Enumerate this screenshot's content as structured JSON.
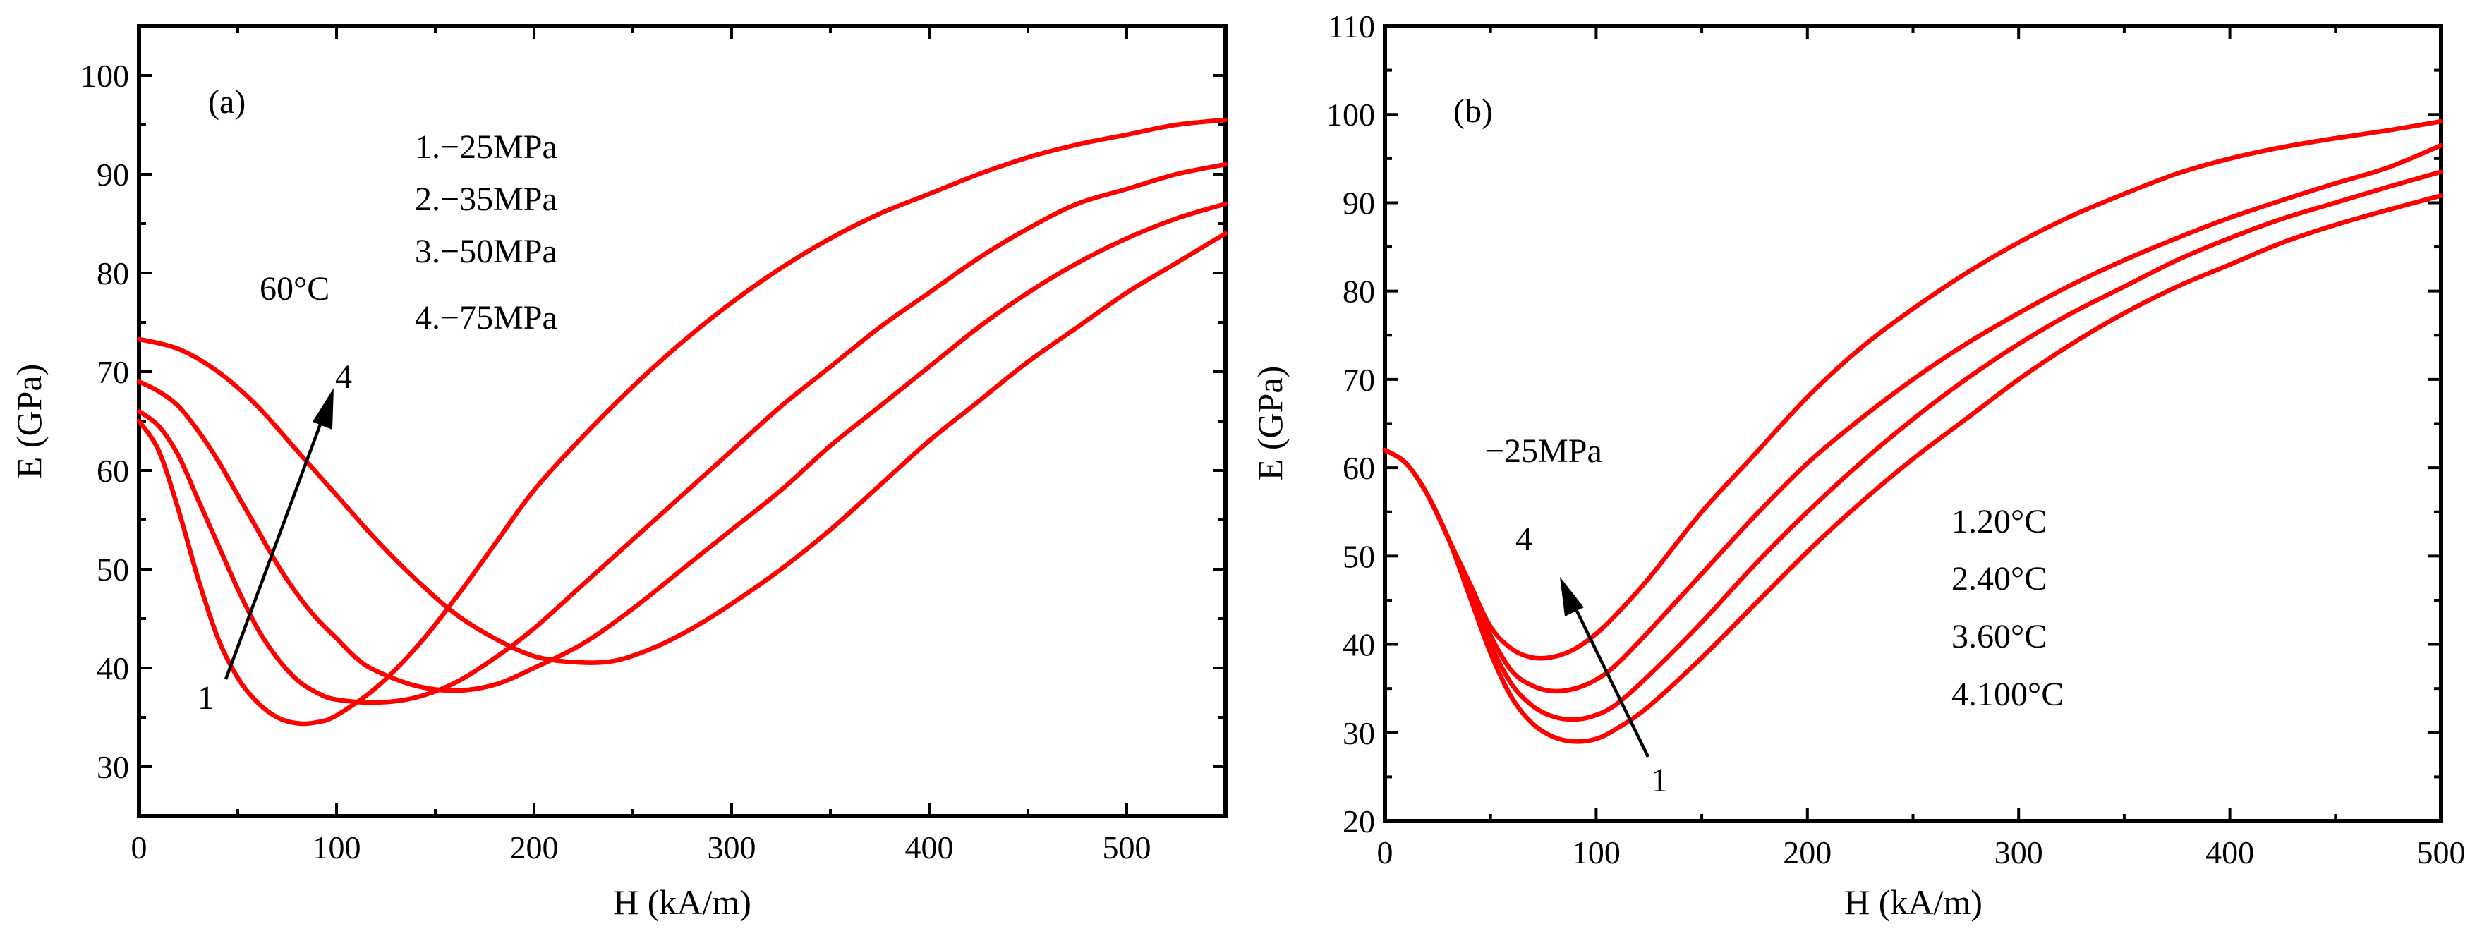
{
  "chart_data": [
    {
      "type": "line",
      "panel": "(a)",
      "xlabel": "H (kA/m)",
      "ylabel": "E (GPa)",
      "xlim": [
        0,
        550
      ],
      "ylim": [
        25,
        105
      ],
      "xticks": [
        0,
        100,
        200,
        300,
        400,
        500
      ],
      "yticks": [
        30,
        40,
        50,
        60,
        70,
        80,
        90,
        100
      ],
      "temperature_label": "60°C",
      "legend": [
        "1.−25MPa",
        "2.−35MPa",
        "3.−50MPa",
        "4.−75MPa"
      ],
      "arrow": {
        "from_label": "1",
        "to_label": "4"
      },
      "color": "#ff0000",
      "series": [
        {
          "name": "1.−25MPa",
          "points": [
            [
              0,
              65
            ],
            [
              10,
              62
            ],
            [
              20,
              56
            ],
            [
              30,
              49
            ],
            [
              40,
              43
            ],
            [
              50,
              39
            ],
            [
              60,
              36.5
            ],
            [
              70,
              35
            ],
            [
              80,
              34.4
            ],
            [
              90,
              34.5
            ],
            [
              100,
              35.2
            ],
            [
              120,
              38
            ],
            [
              140,
              42
            ],
            [
              160,
              47
            ],
            [
              180,
              52.5
            ],
            [
              200,
              58
            ],
            [
              225,
              63.5
            ],
            [
              250,
              68.5
            ],
            [
              275,
              73
            ],
            [
              300,
              77
            ],
            [
              325,
              80.5
            ],
            [
              350,
              83.5
            ],
            [
              375,
              86
            ],
            [
              400,
              88
            ],
            [
              425,
              90
            ],
            [
              450,
              91.7
            ],
            [
              475,
              93
            ],
            [
              500,
              94
            ],
            [
              525,
              95
            ],
            [
              550,
              95.5
            ]
          ]
        },
        {
          "name": "2.−35MPa",
          "points": [
            [
              0,
              66
            ],
            [
              10,
              64.5
            ],
            [
              20,
              61.5
            ],
            [
              30,
              57
            ],
            [
              40,
              52.5
            ],
            [
              50,
              48
            ],
            [
              60,
              44
            ],
            [
              70,
              41
            ],
            [
              80,
              38.8
            ],
            [
              90,
              37.5
            ],
            [
              100,
              36.8
            ],
            [
              120,
              36.5
            ],
            [
              140,
              37
            ],
            [
              160,
              38.5
            ],
            [
              180,
              41
            ],
            [
              200,
              44
            ],
            [
              225,
              48.5
            ],
            [
              250,
              53
            ],
            [
              275,
              57.5
            ],
            [
              300,
              62
            ],
            [
              325,
              66.5
            ],
            [
              350,
              70.5
            ],
            [
              375,
              74.5
            ],
            [
              400,
              78
            ],
            [
              425,
              81.5
            ],
            [
              450,
              84.5
            ],
            [
              475,
              87
            ],
            [
              500,
              88.5
            ],
            [
              525,
              90
            ],
            [
              550,
              91
            ]
          ]
        },
        {
          "name": "3.−50MPa",
          "points": [
            [
              0,
              69
            ],
            [
              10,
              68
            ],
            [
              20,
              66.5
            ],
            [
              30,
              64
            ],
            [
              40,
              61
            ],
            [
              50,
              57.5
            ],
            [
              60,
              54
            ],
            [
              70,
              50.5
            ],
            [
              80,
              47.5
            ],
            [
              90,
              45
            ],
            [
              100,
              43
            ],
            [
              110,
              41
            ],
            [
              120,
              39.7
            ],
            [
              140,
              38.2
            ],
            [
              160,
              37.7
            ],
            [
              180,
              38.3
            ],
            [
              200,
              40
            ],
            [
              225,
              42.5
            ],
            [
              250,
              46
            ],
            [
              275,
              50
            ],
            [
              300,
              54
            ],
            [
              325,
              58
            ],
            [
              350,
              62.5
            ],
            [
              375,
              66.5
            ],
            [
              400,
              70.5
            ],
            [
              425,
              74.5
            ],
            [
              450,
              78
            ],
            [
              475,
              81
            ],
            [
              500,
              83.5
            ],
            [
              525,
              85.5
            ],
            [
              550,
              87
            ]
          ]
        },
        {
          "name": "4.−75MPa",
          "points": [
            [
              0,
              73.3
            ],
            [
              20,
              72.3
            ],
            [
              40,
              70
            ],
            [
              60,
              66.5
            ],
            [
              80,
              62
            ],
            [
              100,
              57.5
            ],
            [
              120,
              53
            ],
            [
              140,
              49
            ],
            [
              160,
              45.5
            ],
            [
              180,
              43
            ],
            [
              200,
              41.2
            ],
            [
              220,
              40.6
            ],
            [
              240,
              40.7
            ],
            [
              260,
              42
            ],
            [
              280,
              44
            ],
            [
              300,
              46.5
            ],
            [
              325,
              50
            ],
            [
              350,
              54
            ],
            [
              375,
              58.5
            ],
            [
              400,
              63
            ],
            [
              425,
              67
            ],
            [
              450,
              71
            ],
            [
              475,
              74.5
            ],
            [
              500,
              78
            ],
            [
              525,
              81
            ],
            [
              550,
              84
            ]
          ]
        }
      ]
    },
    {
      "type": "line",
      "panel": "(b)",
      "xlabel": "H (kA/m)",
      "ylabel": "E (GPa)",
      "xlim": [
        0,
        500
      ],
      "ylim": [
        20,
        110
      ],
      "xticks": [
        0,
        100,
        200,
        300,
        400,
        500
      ],
      "yticks": [
        20,
        30,
        40,
        50,
        60,
        70,
        80,
        90,
        100,
        110
      ],
      "stress_label": "−25MPa",
      "legend": [
        "1.20°C",
        "2.40°C",
        "3.60°C",
        "4.100°C"
      ],
      "arrow": {
        "from_label": "1",
        "to_label": "4"
      },
      "color": "#ff0000",
      "series": [
        {
          "name": "1.20°C",
          "points": [
            [
              0,
              62
            ],
            [
              10,
              60.5
            ],
            [
              20,
              57
            ],
            [
              30,
              52
            ],
            [
              40,
              45.5
            ],
            [
              50,
              39
            ],
            [
              60,
              34
            ],
            [
              70,
              31
            ],
            [
              80,
              29.5
            ],
            [
              90,
              29
            ],
            [
              100,
              29.3
            ],
            [
              110,
              30.5
            ],
            [
              125,
              33
            ],
            [
              150,
              38.5
            ],
            [
              175,
              44.5
            ],
            [
              200,
              50.5
            ],
            [
              225,
              56
            ],
            [
              250,
              61
            ],
            [
              275,
              65.5
            ],
            [
              300,
              70
            ],
            [
              325,
              74
            ],
            [
              350,
              77.5
            ],
            [
              375,
              80.5
            ],
            [
              400,
              83
            ],
            [
              425,
              85.5
            ],
            [
              450,
              87.5
            ],
            [
              475,
              89.2
            ],
            [
              500,
              90.8
            ]
          ]
        },
        {
          "name": "2.40°C",
          "points": [
            [
              0,
              62
            ],
            [
              10,
              60.5
            ],
            [
              20,
              57
            ],
            [
              30,
              52
            ],
            [
              40,
              46
            ],
            [
              50,
              40
            ],
            [
              60,
              35.5
            ],
            [
              70,
              33
            ],
            [
              80,
              31.8
            ],
            [
              90,
              31.5
            ],
            [
              100,
              32
            ],
            [
              110,
              33.3
            ],
            [
              125,
              36.5
            ],
            [
              150,
              42.5
            ],
            [
              175,
              49
            ],
            [
              200,
              55
            ],
            [
              225,
              60.5
            ],
            [
              250,
              65.5
            ],
            [
              275,
              70
            ],
            [
              300,
              74
            ],
            [
              325,
              77.5
            ],
            [
              350,
              80.5
            ],
            [
              375,
              83.5
            ],
            [
              400,
              86
            ],
            [
              425,
              88.2
            ],
            [
              450,
              90
            ],
            [
              475,
              91.8
            ],
            [
              500,
              93.5
            ]
          ]
        },
        {
          "name": "3.60°C",
          "points": [
            [
              0,
              62
            ],
            [
              10,
              60.5
            ],
            [
              20,
              57
            ],
            [
              30,
              52
            ],
            [
              40,
              46.5
            ],
            [
              50,
              41
            ],
            [
              60,
              37
            ],
            [
              70,
              35.3
            ],
            [
              80,
              34.7
            ],
            [
              90,
              35
            ],
            [
              100,
              36
            ],
            [
              110,
              37.8
            ],
            [
              125,
              41.5
            ],
            [
              150,
              48
            ],
            [
              175,
              54.5
            ],
            [
              200,
              60.5
            ],
            [
              225,
              65.5
            ],
            [
              250,
              70
            ],
            [
              275,
              74
            ],
            [
              300,
              77.5
            ],
            [
              325,
              80.7
            ],
            [
              350,
              83.5
            ],
            [
              375,
              86
            ],
            [
              400,
              88.3
            ],
            [
              425,
              90.3
            ],
            [
              450,
              92.2
            ],
            [
              475,
              94
            ],
            [
              500,
              96.5
            ]
          ]
        },
        {
          "name": "4.100°C",
          "points": [
            [
              0,
              62
            ],
            [
              10,
              60.5
            ],
            [
              20,
              57
            ],
            [
              30,
              52
            ],
            [
              40,
              47
            ],
            [
              50,
              42
            ],
            [
              60,
              39.5
            ],
            [
              70,
              38.5
            ],
            [
              80,
              38.6
            ],
            [
              90,
              39.5
            ],
            [
              100,
              41.2
            ],
            [
              110,
              43.5
            ],
            [
              125,
              47.5
            ],
            [
              150,
              55
            ],
            [
              175,
              61.5
            ],
            [
              200,
              68
            ],
            [
              225,
              73.5
            ],
            [
              250,
              78
            ],
            [
              275,
              82
            ],
            [
              300,
              85.5
            ],
            [
              325,
              88.5
            ],
            [
              350,
              91
            ],
            [
              375,
              93.3
            ],
            [
              400,
              95
            ],
            [
              425,
              96.3
            ],
            [
              450,
              97.3
            ],
            [
              475,
              98.2
            ],
            [
              500,
              99.2
            ]
          ]
        }
      ]
    }
  ]
}
